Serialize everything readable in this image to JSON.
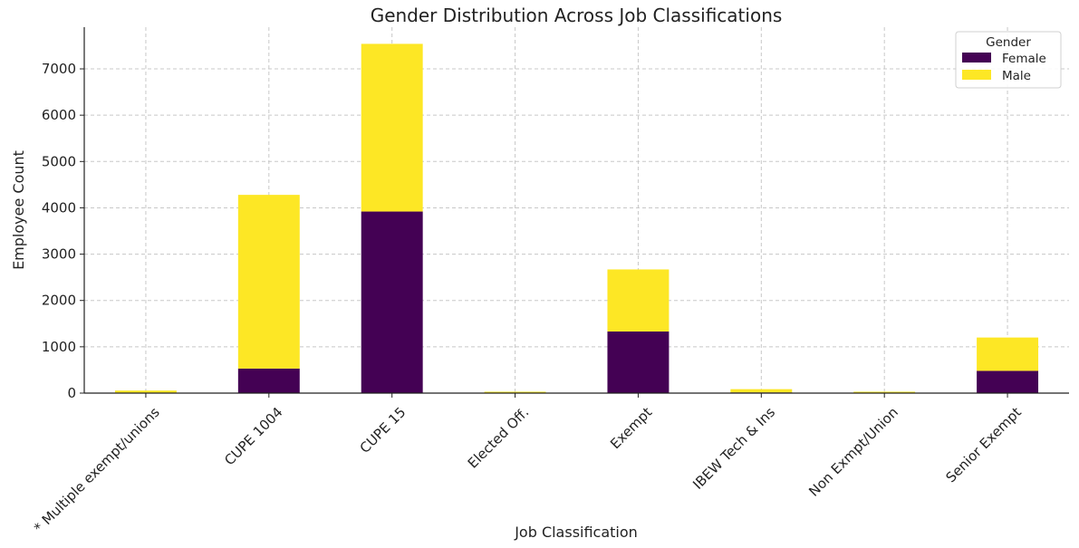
{
  "chart_data": {
    "type": "bar",
    "stacked": true,
    "title": "Gender Distribution Across Job Classifications",
    "xlabel": "Job Classification",
    "ylabel": "Employee Count",
    "ylim": [
      0,
      7900
    ],
    "yticks": [
      0,
      1000,
      2000,
      3000,
      4000,
      5000,
      6000,
      7000
    ],
    "categories": [
      "* Multiple exempt/unions",
      "CUPE 1004",
      "CUPE 15",
      "Elected Off.",
      "Exempt",
      "IBEW Tech & Ins",
      "Non Exmpt/Union",
      "Senior Exempt"
    ],
    "series": [
      {
        "name": "Female",
        "color": "#440154",
        "values": [
          10,
          530,
          3920,
          8,
          1330,
          15,
          8,
          480
        ]
      },
      {
        "name": "Male",
        "color": "#fde725",
        "values": [
          45,
          3750,
          3620,
          22,
          1340,
          70,
          22,
          720
        ]
      }
    ],
    "legend": {
      "title": "Gender",
      "position": "top-right"
    },
    "grid": true
  }
}
